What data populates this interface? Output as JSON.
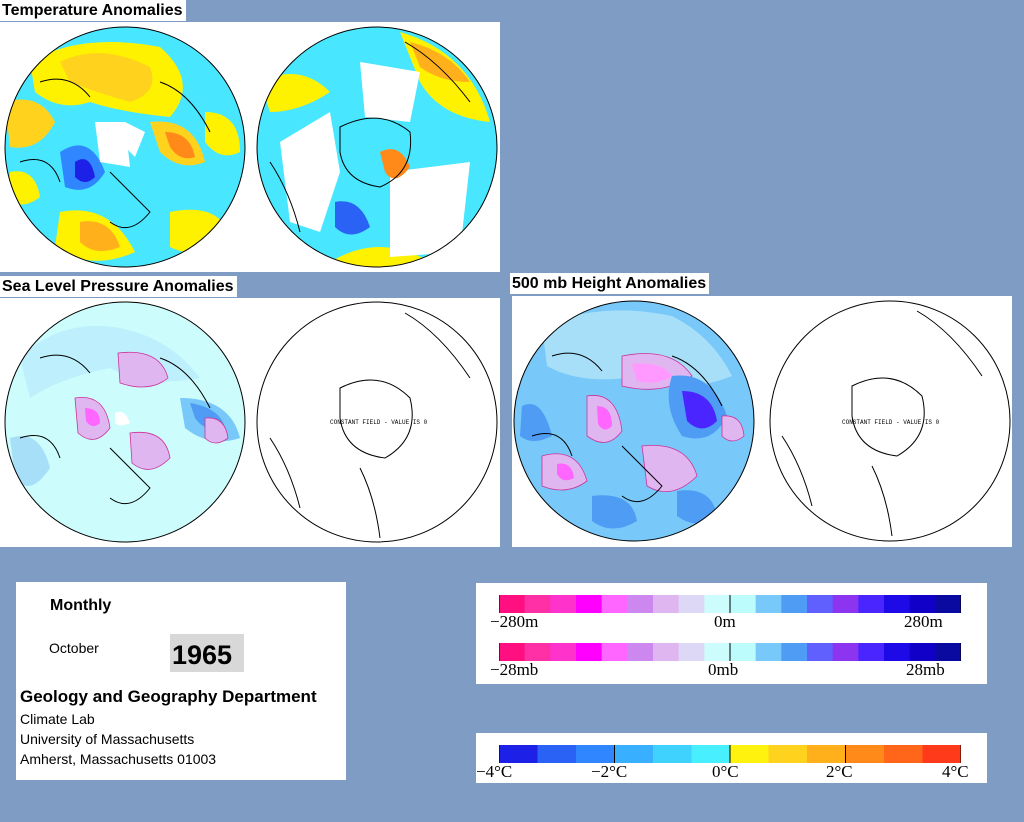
{
  "titles": {
    "temperature": "Temperature Anomalies",
    "slp": "Sea Level Pressure Anomalies",
    "height500": "500 mb Height Anomalies"
  },
  "constant_field_note": "CONSTANT FIELD - VALUE IS 0",
  "info": {
    "period": "Monthly",
    "month": "October",
    "year": "1965",
    "department": "Geology and Geography Department",
    "lab": "Climate Lab",
    "university": "University of Massachusetts",
    "address": "Amherst, Massachusetts 01003"
  },
  "legends": {
    "height": {
      "min": "−280m",
      "mid": "0m",
      "max": "280m"
    },
    "pressure": {
      "min": "−28mb",
      "mid": "0mb",
      "max": "28mb"
    },
    "temperature": {
      "t1": "−4°C",
      "t2": "−2°C",
      "t3": "0°C",
      "t4": "2°C",
      "t5": "4°C"
    }
  },
  "colors": {
    "pressure_height_scale": [
      "#ff0f7f",
      "#ff2fa5",
      "#ff33cc",
      "#ff00ff",
      "#ff66ff",
      "#cc88ee",
      "#e0b6f0",
      "#dcd8f6",
      "#ccfcfc",
      "#bdfcfc",
      "#78c8fa",
      "#4f9cf5",
      "#6060ff",
      "#8c34f0",
      "#4a25ff",
      "#1e0ae6",
      "#1000c8",
      "#0a0aa0"
    ],
    "temperature_scale": [
      "#1d20e6",
      "#2a62f5",
      "#2f86ff",
      "#38b0ff",
      "#40d2ff",
      "#48f0ff",
      "#fff20f",
      "#ffd21e",
      "#ffb01a",
      "#ff8a1a",
      "#ff661a",
      "#ff3a1a"
    ]
  }
}
